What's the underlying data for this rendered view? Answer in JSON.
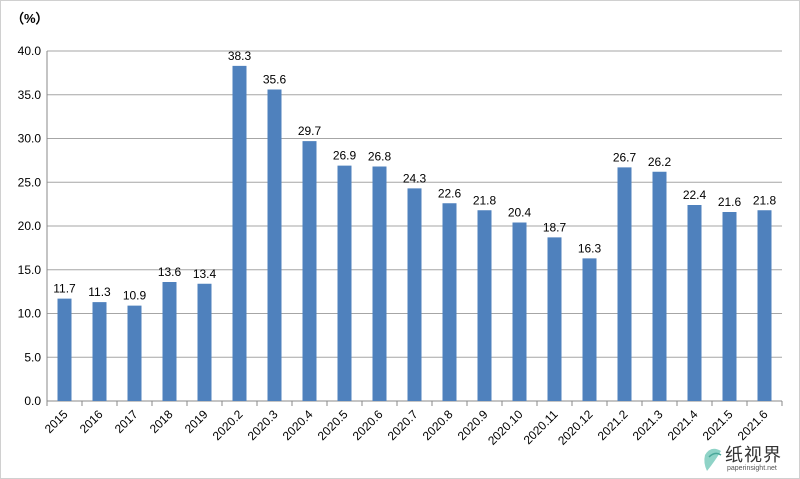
{
  "chart_data": {
    "type": "bar",
    "unit_label": "（%）",
    "categories": [
      "2015",
      "2016",
      "2017",
      "2018",
      "2019",
      "2020.2",
      "2020.3",
      "2020.4",
      "2020.5",
      "2020.6",
      "2020.7",
      "2020.8",
      "2020.9",
      "2020.10",
      "2020.11",
      "2020.12",
      "2021.2",
      "2021.3",
      "2021.4",
      "2021.5",
      "2021.6"
    ],
    "values": [
      11.7,
      11.3,
      10.9,
      13.6,
      13.4,
      38.3,
      35.6,
      29.7,
      26.9,
      26.8,
      24.3,
      22.6,
      21.8,
      20.4,
      18.7,
      16.3,
      26.7,
      26.2,
      22.4,
      21.6,
      21.8
    ],
    "data_labels": [
      "11.7",
      "11.3",
      "10.9",
      "13.6",
      "13.4",
      "38.3",
      "35.6",
      "29.7",
      "26.9",
      "26.8",
      "24.3",
      "22.6",
      "21.8",
      "20.4",
      "18.7",
      "16.3",
      "26.7",
      "26.2",
      "22.4",
      "21.6",
      "21.8"
    ],
    "ylim": [
      0,
      40
    ],
    "yticks": [
      "0.0",
      "5.0",
      "10.0",
      "15.0",
      "20.0",
      "25.0",
      "30.0",
      "35.0",
      "40.0"
    ],
    "grid": true,
    "bar_color": "#4f81bd"
  },
  "watermark": {
    "text": "纸视界",
    "url": "paperinsight.net"
  }
}
